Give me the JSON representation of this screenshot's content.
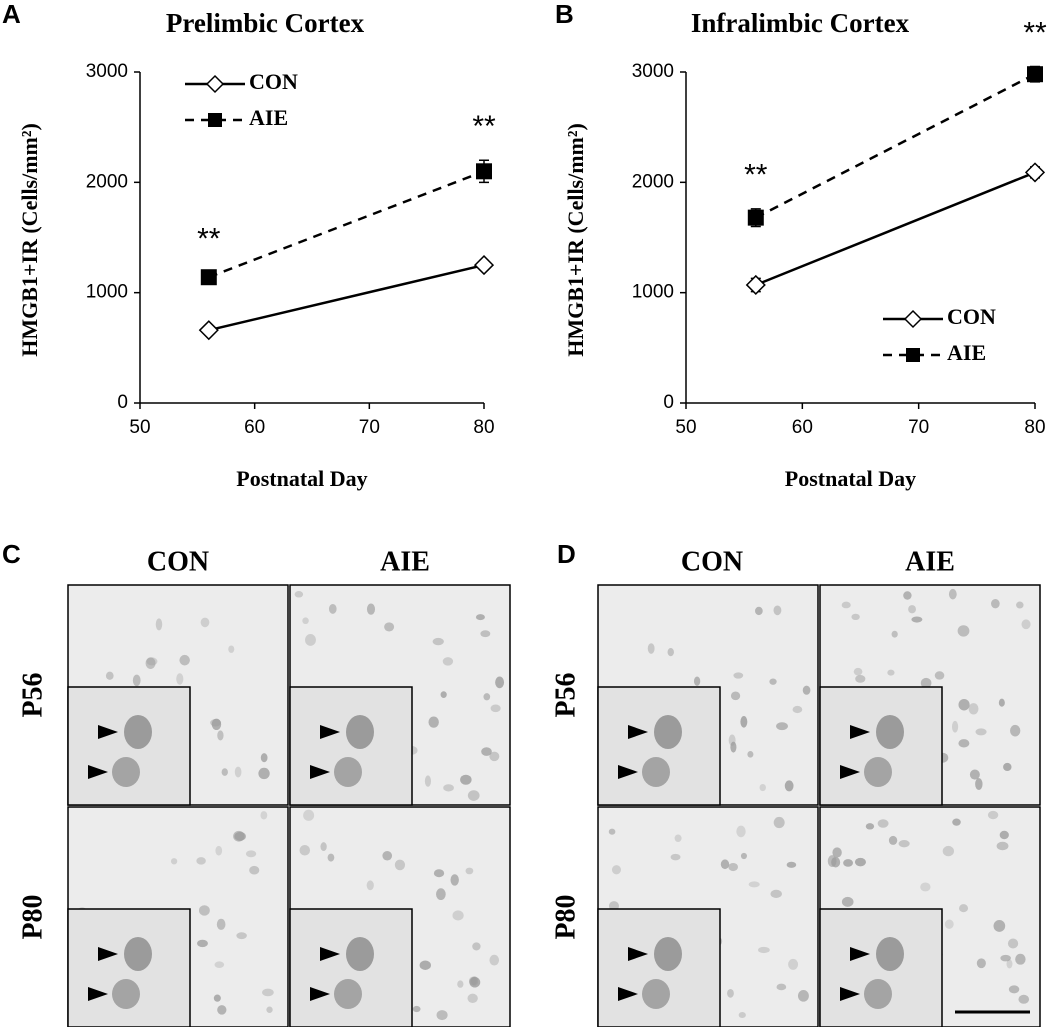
{
  "chart_data": [
    {
      "type": "line",
      "panel_label": "A",
      "title": "Prelimbic  Cortex",
      "xlabel": "Postnatal Day",
      "ylabel": "HMGB1+IR (Cells/mm²)",
      "x": [
        56,
        80
      ],
      "xlim": [
        50,
        80
      ],
      "xticks": [
        50,
        60,
        70,
        80
      ],
      "ylim": [
        0,
        3000
      ],
      "yticks": [
        0,
        1000,
        2000,
        3000
      ],
      "legend": "upper left",
      "annotations": [
        "**",
        "**"
      ],
      "series": [
        {
          "name": "CON",
          "color": "#000000",
          "line_style": "solid",
          "marker": "diamond",
          "marker_fill": "#ffffff",
          "values": [
            660,
            1250
          ],
          "errors": [
            20,
            40
          ]
        },
        {
          "name": "AIE",
          "color": "#000000",
          "line_style": "dashed",
          "marker": "square",
          "marker_fill": "#000000",
          "values": [
            1140,
            2100
          ],
          "errors": [
            40,
            100
          ]
        }
      ]
    },
    {
      "type": "line",
      "panel_label": "B",
      "title": "Infralimbic  Cortex",
      "xlabel": "Postnatal Day",
      "ylabel": "HMGB1+IR (Cells/mm²)",
      "x": [
        56,
        80
      ],
      "xlim": [
        50,
        80
      ],
      "xticks": [
        50,
        60,
        70,
        80
      ],
      "ylim": [
        0,
        3000
      ],
      "yticks": [
        0,
        1000,
        2000,
        3000
      ],
      "legend": "lower right",
      "annotations": [
        "**",
        "**"
      ],
      "series": [
        {
          "name": "CON",
          "color": "#000000",
          "line_style": "solid",
          "marker": "diamond",
          "marker_fill": "#ffffff",
          "values": [
            1070,
            2090
          ],
          "errors": [
            60,
            50
          ]
        },
        {
          "name": "AIE",
          "color": "#000000",
          "line_style": "dashed",
          "marker": "square",
          "marker_fill": "#000000",
          "values": [
            1680,
            2980
          ],
          "errors": [
            80,
            70
          ]
        }
      ]
    }
  ],
  "panels": [
    {
      "letter": "C",
      "columns": [
        "CON",
        "AIE"
      ],
      "rows": [
        "P56",
        "P80"
      ]
    },
    {
      "letter": "D",
      "columns": [
        "CON",
        "AIE"
      ],
      "rows": [
        "P56",
        "P80"
      ]
    }
  ]
}
